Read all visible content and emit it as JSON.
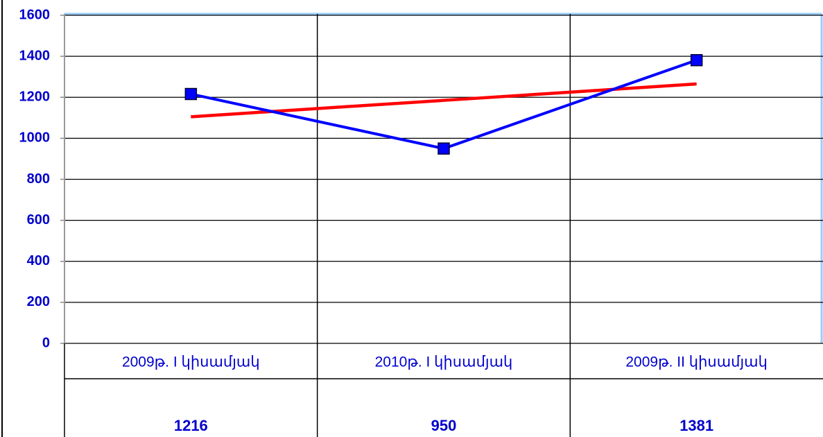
{
  "chart_data": {
    "type": "line",
    "categories": [
      "2009թ. I կիսամյակ",
      "2010թ. I կիսամյակ",
      "2009թ. II կիսամյակ"
    ],
    "series": [
      {
        "color": "#0000ff",
        "values": [
          1216,
          950,
          1381
        ]
      }
    ],
    "trendline": {
      "color": "#ff0000",
      "values": [
        1105,
        1185,
        1265
      ]
    },
    "ylim": [
      0,
      1600
    ],
    "yticks": [
      0,
      200,
      400,
      600,
      800,
      1000,
      1200,
      1400,
      1600
    ],
    "grid": true
  }
}
